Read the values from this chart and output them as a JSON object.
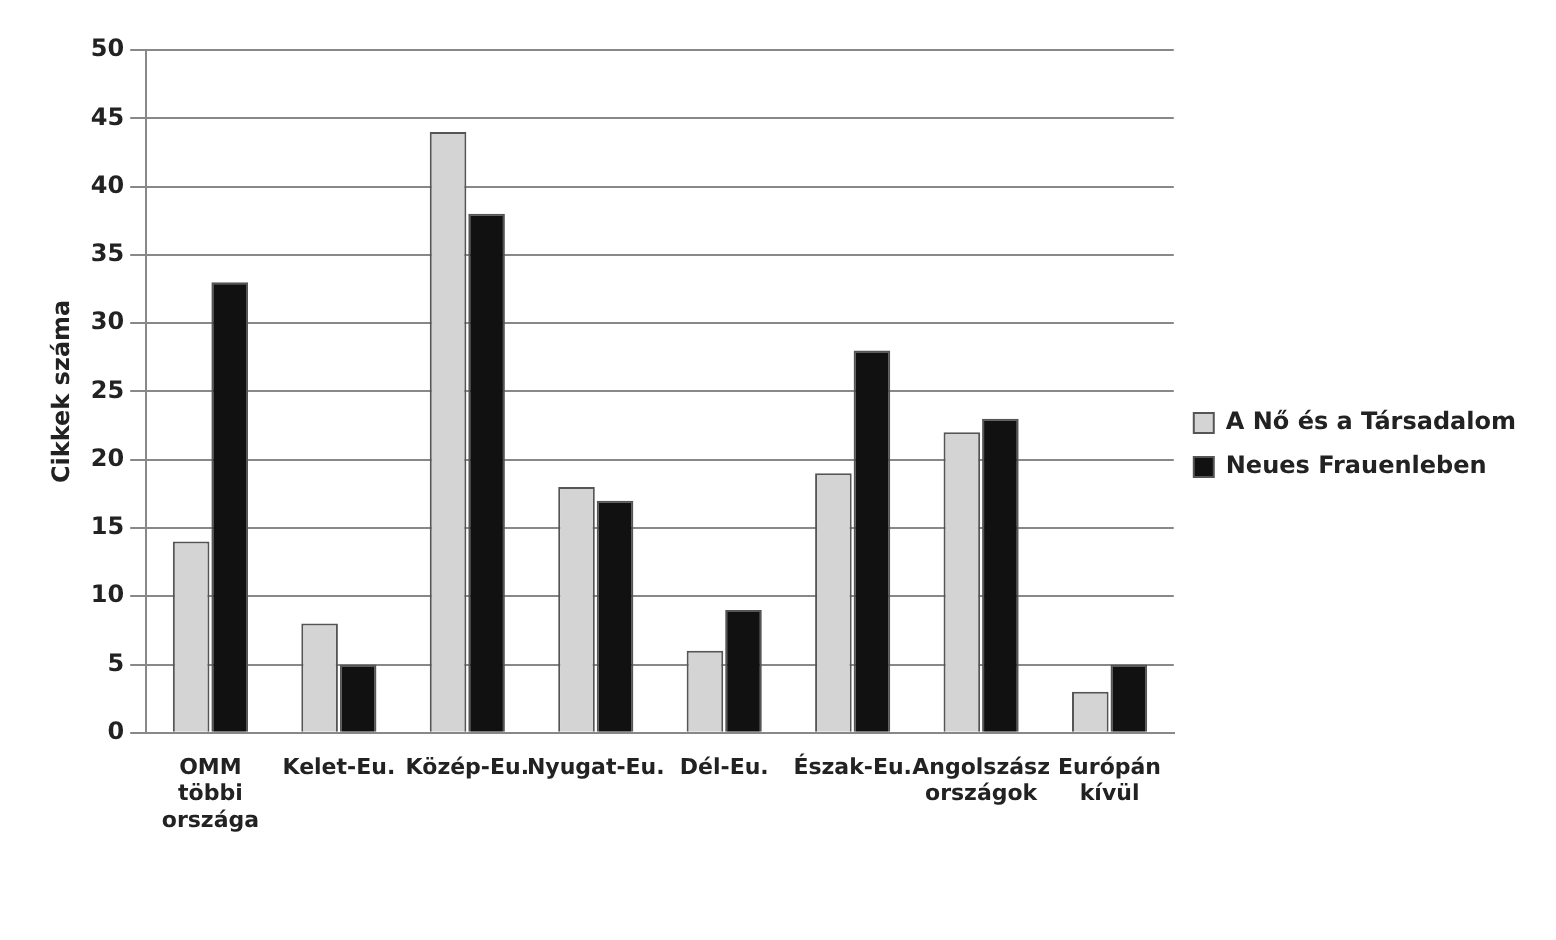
{
  "chart_data": {
    "type": "bar",
    "ylabel": "Cikkek száma",
    "categories": [
      "OMM\ntöbbi\nországa",
      "Kelet-Eu.",
      "Közép-Eu.",
      "Nyugat-Eu.",
      "Dél-Eu.",
      "Észak-Eu.",
      "Angolszász\nországok",
      "Európán\nkívül"
    ],
    "series": [
      {
        "name": "A Nő és a Társadalom",
        "color": "#d4d4d4",
        "values": [
          14,
          8,
          44,
          18,
          6,
          19,
          22,
          3
        ]
      },
      {
        "name": "Neues Frauenleben",
        "color": "#111111",
        "values": [
          33,
          5,
          38,
          17,
          9,
          28,
          23,
          5
        ]
      }
    ],
    "ylim": [
      0,
      50
    ],
    "yticks": [
      0,
      5,
      10,
      15,
      20,
      25,
      30,
      35,
      40,
      45,
      50
    ],
    "grid": "y",
    "legend": "right"
  }
}
